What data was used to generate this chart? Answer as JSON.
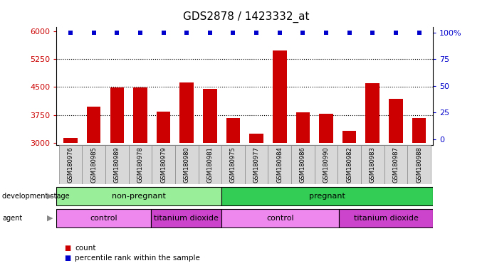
{
  "title": "GDS2878 / 1423332_at",
  "samples": [
    "GSM180976",
    "GSM180985",
    "GSM180989",
    "GSM180978",
    "GSM180979",
    "GSM180980",
    "GSM180981",
    "GSM180975",
    "GSM180977",
    "GSM180984",
    "GSM180986",
    "GSM180990",
    "GSM180982",
    "GSM180983",
    "GSM180987",
    "GSM180988"
  ],
  "counts": [
    3130,
    3970,
    4490,
    4490,
    3840,
    4620,
    4440,
    3660,
    3240,
    5480,
    3820,
    3780,
    3330,
    4610,
    4180,
    3660
  ],
  "ylim_left": [
    2950,
    6100
  ],
  "ylim_right": [
    -5,
    105
  ],
  "yticks_left": [
    3000,
    3750,
    4500,
    5250,
    6000
  ],
  "yticks_right": [
    0,
    25,
    50,
    75,
    100
  ],
  "bar_color": "#cc0000",
  "marker_color": "#0000cc",
  "dev_stage_groups": [
    {
      "label": "non-pregnant",
      "start": 0,
      "end": 7,
      "color": "#99ee99"
    },
    {
      "label": "pregnant",
      "start": 7,
      "end": 16,
      "color": "#33cc55"
    }
  ],
  "agent_groups": [
    {
      "label": "control",
      "start": 0,
      "end": 4,
      "color": "#ee88ee"
    },
    {
      "label": "titanium dioxide",
      "start": 4,
      "end": 7,
      "color": "#cc44cc"
    },
    {
      "label": "control",
      "start": 7,
      "end": 12,
      "color": "#ee88ee"
    },
    {
      "label": "titanium dioxide",
      "start": 12,
      "end": 16,
      "color": "#cc44cc"
    }
  ],
  "tick_label_color_left": "#cc0000",
  "tick_label_color_right": "#0000cc",
  "background_color": "#ffffff"
}
